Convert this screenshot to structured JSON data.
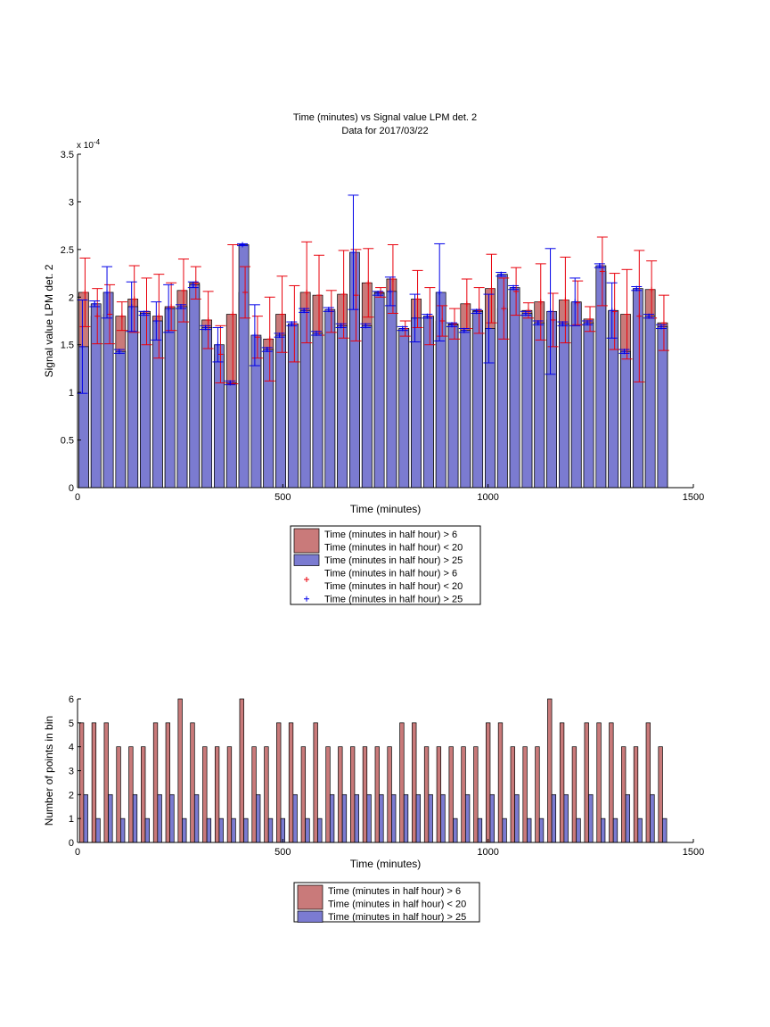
{
  "chart_data": [
    {
      "type": "bar",
      "title": "Time (minutes) vs Signal value LPM det. 2",
      "subtitle": "Data for 2017/03/22",
      "xlabel": "Time (minutes)",
      "ylabel": "Signal value LPM det. 2",
      "exponent_label": "x 10",
      "exponent_power": "-4",
      "xlim": [
        0,
        1500
      ],
      "ylim": [
        0,
        3.5
      ],
      "xticks": [
        "0",
        "500",
        "1000",
        "1500"
      ],
      "yticks": [
        "0",
        "0.5",
        "1",
        "1.5",
        "2",
        "2.5",
        "3",
        "3.5"
      ],
      "bar_width": 24,
      "x": [
        15,
        45,
        75,
        105,
        135,
        165,
        195,
        225,
        255,
        285,
        315,
        345,
        375,
        405,
        435,
        465,
        495,
        525,
        555,
        585,
        615,
        645,
        675,
        705,
        735,
        765,
        795,
        825,
        855,
        885,
        915,
        945,
        975,
        1005,
        1035,
        1065,
        1095,
        1125,
        1155,
        1185,
        1215,
        1245,
        1275,
        1305,
        1335,
        1365,
        1395,
        1425
      ],
      "series": [
        {
          "name": "Time (minutes in half hour) > 6\nTime (minutes in half hour) < 20",
          "color": "#c97a7a",
          "error_color": "#e8000b",
          "values": [
            2.05,
            1.8,
            1.82,
            1.8,
            1.98,
            1.85,
            1.8,
            1.9,
            2.07,
            2.15,
            1.76,
            1.4,
            1.82,
            2.05,
            1.58,
            1.56,
            1.82,
            1.72,
            2.05,
            2.02,
            1.85,
            2.03,
            2.02,
            2.15,
            2.05,
            2.19,
            1.67,
            1.98,
            1.8,
            1.75,
            1.72,
            1.93,
            1.86,
            2.09,
            1.88,
            2.06,
            1.86,
            1.95,
            1.76,
            1.97,
            1.94,
            1.77,
            2.27,
            1.85,
            1.82,
            1.8,
            2.08,
            1.73
          ],
          "errors": [
            0.36,
            0.29,
            0.31,
            0.15,
            0.35,
            0.35,
            0.44,
            0.25,
            0.33,
            0.17,
            0.3,
            0.3,
            0.73,
            0.27,
            0.22,
            0.44,
            0.4,
            0.4,
            0.53,
            0.42,
            0.22,
            0.46,
            0.48,
            0.36,
            0.05,
            0.36,
            0.08,
            0.3,
            0.3,
            0.16,
            0.16,
            0.26,
            0.24,
            0.36,
            0.32,
            0.25,
            0.08,
            0.4,
            0.28,
            0.45,
            0.23,
            0.13,
            0.36,
            0.4,
            0.47,
            0.69,
            0.3,
            0.29
          ]
        },
        {
          "name": "Time (minutes in half hour) > 25",
          "color": "#7b7bd1",
          "error_color": "#0000e8",
          "values": [
            1.48,
            1.93,
            2.05,
            1.43,
            1.9,
            1.83,
            1.75,
            1.88,
            1.9,
            2.13,
            1.68,
            1.5,
            1.1,
            2.55,
            1.6,
            1.45,
            1.6,
            1.72,
            1.86,
            1.62,
            1.87,
            1.7,
            2.47,
            1.7,
            2.04,
            2.06,
            1.67,
            1.78,
            1.8,
            2.05,
            1.71,
            1.65,
            1.85,
            1.67,
            2.24,
            2.1,
            1.83,
            1.73,
            1.85,
            1.72,
            1.95,
            1.73,
            2.33,
            1.86,
            1.43,
            2.09,
            1.8,
            1.69
          ],
          "errors": [
            0.49,
            0.03,
            0.27,
            0.02,
            0.26,
            0.02,
            0.2,
            0.25,
            0.02,
            0.03,
            0.02,
            0.18,
            0.02,
            0.01,
            0.32,
            0.02,
            0.02,
            0.02,
            0.02,
            0.02,
            0.02,
            0.02,
            0.6,
            0.02,
            0.02,
            0.15,
            0.02,
            0.25,
            0.02,
            0.51,
            0.02,
            0.02,
            0.02,
            0.36,
            0.02,
            0.02,
            0.02,
            0.02,
            0.66,
            0.02,
            0.25,
            0.02,
            0.02,
            0.29,
            0.02,
            0.02,
            0.02,
            0.02
          ]
        }
      ],
      "legend": {
        "entries": [
          {
            "marker": "patch",
            "color": "#c97a7a",
            "lines": [
              "Time (minutes in half hour) > 6",
              "Time (minutes in half hour) < 20"
            ]
          },
          {
            "marker": "patch",
            "color": "#7b7bd1",
            "lines": [
              "Time (minutes in half hour) > 25"
            ]
          },
          {
            "marker": "plus",
            "color": "#e8000b",
            "lines": [
              "Time (minutes in half hour) > 6",
              "Time (minutes in half hour) < 20"
            ]
          },
          {
            "marker": "plus",
            "color": "#0000e8",
            "lines": [
              "Time (minutes in half hour) > 25"
            ]
          }
        ]
      },
      "legend_position": "below",
      "grid": false
    },
    {
      "type": "bar",
      "xlabel": "Time (minutes)",
      "ylabel": "Number of points in bin",
      "xlim": [
        0,
        1500
      ],
      "ylim": [
        0,
        6
      ],
      "xticks": [
        "0",
        "500",
        "1000",
        "1500"
      ],
      "yticks": [
        "0",
        "1",
        "2",
        "3",
        "4",
        "5",
        "6"
      ],
      "bar_width": 10,
      "x": [
        15,
        45,
        75,
        105,
        135,
        165,
        195,
        225,
        255,
        285,
        315,
        345,
        375,
        405,
        435,
        465,
        495,
        525,
        555,
        585,
        615,
        645,
        675,
        705,
        735,
        765,
        795,
        825,
        855,
        885,
        915,
        945,
        975,
        1005,
        1035,
        1065,
        1095,
        1125,
        1155,
        1185,
        1215,
        1245,
        1275,
        1305,
        1335,
        1365,
        1395,
        1425
      ],
      "series": [
        {
          "name": "Time (minutes in half hour) > 6\nTime (minutes in half hour) < 20",
          "color": "#c97a7a",
          "values": [
            5,
            5,
            5,
            4,
            4,
            4,
            5,
            5,
            6,
            5,
            4,
            4,
            4,
            6,
            4,
            4,
            5,
            5,
            4,
            5,
            4,
            4,
            4,
            4,
            4,
            4,
            5,
            5,
            4,
            4,
            4,
            4,
            4,
            5,
            5,
            4,
            4,
            4,
            6,
            5,
            4,
            5,
            5,
            5,
            4,
            4,
            5,
            4
          ]
        },
        {
          "name": "Time (minutes in half hour) > 25",
          "color": "#7b7bd1",
          "values": [
            2,
            1,
            2,
            1,
            2,
            1,
            2,
            2,
            1,
            2,
            1,
            1,
            1,
            1,
            2,
            1,
            1,
            2,
            1,
            1,
            2,
            2,
            2,
            2,
            2,
            2,
            2,
            2,
            2,
            2,
            1,
            2,
            1,
            2,
            1,
            2,
            1,
            1,
            2,
            2,
            1,
            2,
            1,
            1,
            2,
            1,
            2,
            1
          ]
        }
      ],
      "legend": {
        "entries": [
          {
            "marker": "patch",
            "color": "#c97a7a",
            "lines": [
              "Time (minutes in half hour) > 6",
              "Time (minutes in half hour) < 20"
            ]
          },
          {
            "marker": "patch",
            "color": "#7b7bd1",
            "lines": [
              "Time (minutes in half hour) > 25"
            ]
          }
        ]
      },
      "legend_position": "below",
      "grid": false
    }
  ]
}
